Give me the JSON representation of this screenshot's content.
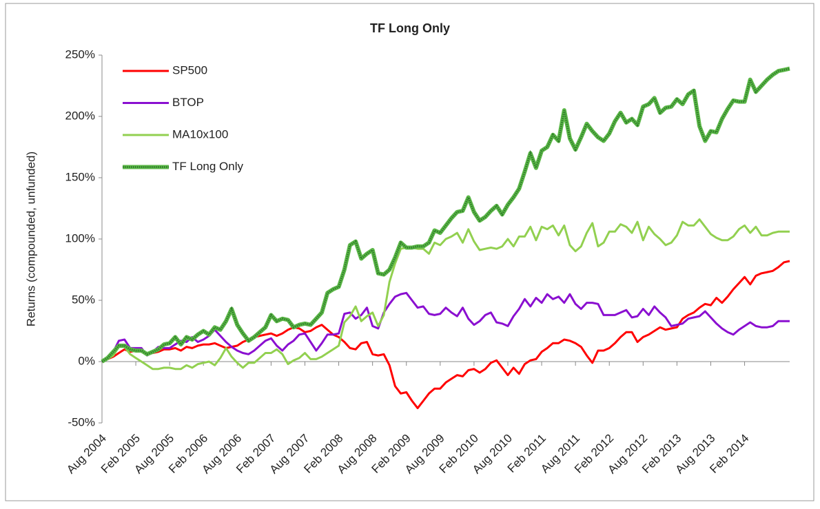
{
  "chart_data": {
    "type": "line",
    "title": "TF Long Only",
    "y_label": "Returns (compounded, unfunded)",
    "categories": [
      "Aug 2004",
      null,
      null,
      null,
      null,
      null,
      "Feb 2005",
      null,
      null,
      null,
      null,
      null,
      "Aug 2005",
      null,
      null,
      null,
      null,
      null,
      "Feb 2006",
      null,
      null,
      null,
      null,
      null,
      "Aug 2006",
      null,
      null,
      null,
      null,
      null,
      "Feb 2007",
      null,
      null,
      null,
      null,
      null,
      "Aug 2007",
      null,
      null,
      null,
      null,
      null,
      "Feb 2008",
      null,
      null,
      null,
      null,
      null,
      "Aug 2008",
      null,
      null,
      null,
      null,
      null,
      "Feb 2009",
      null,
      null,
      null,
      null,
      null,
      "Aug 2009",
      null,
      null,
      null,
      null,
      null,
      "Feb 2010",
      null,
      null,
      null,
      null,
      null,
      "Aug 2010",
      null,
      null,
      null,
      null,
      null,
      "Feb 2011",
      null,
      null,
      null,
      null,
      null,
      "Aug 2011",
      null,
      null,
      null,
      null,
      null,
      "Feb 2012",
      null,
      null,
      null,
      null,
      null,
      "Aug 2012",
      null,
      null,
      null,
      null,
      null,
      "Feb 2013",
      null,
      null,
      null,
      null,
      null,
      "Aug 2013",
      null,
      null,
      null,
      null,
      null,
      "Feb 2014",
      null,
      null,
      null,
      null,
      null,
      null,
      null,
      null
    ],
    "ylim": [
      -50,
      250
    ],
    "yticks": [
      {
        "value": -50,
        "label": "-50%"
      },
      {
        "value": 0,
        "label": "0%"
      },
      {
        "value": 50,
        "label": "50%"
      },
      {
        "value": 100,
        "label": "100%"
      },
      {
        "value": 150,
        "label": "150%"
      },
      {
        "value": 200,
        "label": "200%"
      },
      {
        "value": 250,
        "label": "250%"
      }
    ],
    "grid": false,
    "legend": "upper left",
    "series": [
      {
        "name": "SP500",
        "color": "#ff0000",
        "values": [
          0,
          2,
          4,
          7,
          10,
          8,
          9,
          8,
          6,
          7,
          8,
          10,
          10,
          11,
          9,
          12,
          11,
          13,
          14,
          14,
          15,
          13,
          11,
          12,
          13,
          16,
          18,
          20,
          21,
          22,
          23,
          21,
          23,
          26,
          28,
          27,
          24,
          25,
          28,
          30,
          26,
          22,
          20,
          16,
          11,
          10,
          15,
          16,
          6,
          5,
          6,
          -3,
          -20,
          -26,
          -25,
          -32,
          -38,
          -32,
          -26,
          -22,
          -22,
          -17,
          -14,
          -11,
          -12,
          -7,
          -6,
          -9,
          -6,
          -1,
          1,
          -5,
          -11,
          -5,
          -10,
          -2,
          1,
          2,
          8,
          11,
          15,
          15,
          18,
          17,
          15,
          12,
          5,
          -1,
          9,
          9,
          11,
          15,
          20,
          24,
          24,
          16,
          20,
          22,
          25,
          28,
          26,
          27,
          28,
          35,
          38,
          40,
          44,
          47,
          46,
          52,
          48,
          53,
          59,
          64,
          69,
          63,
          70,
          72,
          73,
          74,
          77,
          81,
          82
        ]
      },
      {
        "name": "BTOP",
        "color": "#8a0fd0",
        "values": [
          0,
          3,
          8,
          17,
          18,
          11,
          11,
          11,
          5,
          8,
          12,
          11,
          11,
          14,
          17,
          16,
          20,
          16,
          18,
          21,
          26,
          21,
          16,
          12,
          9,
          7,
          6,
          9,
          13,
          17,
          19,
          13,
          9,
          14,
          17,
          22,
          23,
          16,
          9,
          15,
          22,
          22,
          23,
          39,
          40,
          35,
          38,
          44,
          29,
          27,
          40,
          47,
          53,
          55,
          56,
          50,
          44,
          45,
          39,
          38,
          39,
          44,
          40,
          37,
          44,
          35,
          30,
          33,
          38,
          40,
          32,
          31,
          29,
          37,
          43,
          51,
          45,
          52,
          48,
          55,
          51,
          53,
          48,
          55,
          47,
          43,
          48,
          48,
          47,
          38,
          38,
          38,
          40,
          42,
          36,
          37,
          43,
          38,
          45,
          40,
          36,
          29,
          30,
          31,
          35,
          36,
          37,
          41,
          36,
          31,
          27,
          24,
          22,
          26,
          29,
          32,
          29,
          28,
          28,
          29,
          33,
          33,
          33
        ]
      },
      {
        "name": "MA10x100",
        "color": "#92d050",
        "values": [
          0,
          2,
          5,
          12,
          12,
          6,
          3,
          0,
          -3,
          -6,
          -6,
          -5,
          -5,
          -6,
          -6,
          -3,
          -5,
          -2,
          -1,
          0,
          -3,
          3,
          11,
          4,
          -1,
          -5,
          -1,
          -1,
          3,
          7,
          7,
          10,
          6,
          -2,
          1,
          3,
          7,
          2,
          2,
          4,
          7,
          10,
          13,
          32,
          37,
          45,
          33,
          37,
          40,
          29,
          38,
          65,
          80,
          92,
          93,
          93,
          92,
          92,
          88,
          97,
          95,
          100,
          102,
          105,
          97,
          108,
          98,
          91,
          92,
          93,
          92,
          94,
          100,
          94,
          102,
          102,
          110,
          99,
          110,
          108,
          111,
          103,
          111,
          95,
          90,
          94,
          105,
          113,
          94,
          97,
          106,
          106,
          112,
          110,
          105,
          114,
          99,
          110,
          104,
          100,
          95,
          97,
          103,
          114,
          111,
          111,
          116,
          110,
          104,
          101,
          99,
          99,
          102,
          108,
          111,
          105,
          110,
          103,
          103,
          105,
          106,
          106,
          106
        ]
      },
      {
        "name": "TF Long Only",
        "color": "#5cb848",
        "values": [
          0,
          3,
          8,
          13,
          13,
          10,
          9,
          9,
          6,
          8,
          10,
          14,
          15,
          20,
          14,
          20,
          18,
          22,
          25,
          22,
          28,
          26,
          33,
          43,
          30,
          23,
          17,
          20,
          24,
          28,
          38,
          33,
          35,
          34,
          28,
          30,
          31,
          30,
          35,
          40,
          56,
          59,
          61,
          75,
          95,
          98,
          84,
          88,
          91,
          72,
          71,
          75,
          85,
          97,
          93,
          93,
          94,
          94,
          97,
          107,
          105,
          111,
          117,
          122,
          123,
          134,
          122,
          115,
          118,
          123,
          127,
          120,
          128,
          134,
          141,
          155,
          170,
          158,
          172,
          175,
          185,
          180,
          205,
          182,
          173,
          183,
          194,
          188,
          183,
          180,
          186,
          196,
          203,
          195,
          198,
          193,
          208,
          210,
          215,
          203,
          207,
          208,
          214,
          210,
          218,
          221,
          192,
          180,
          188,
          187,
          198,
          206,
          213,
          212,
          212,
          230,
          220,
          225,
          230,
          234,
          237,
          238,
          239
        ]
      }
    ]
  }
}
